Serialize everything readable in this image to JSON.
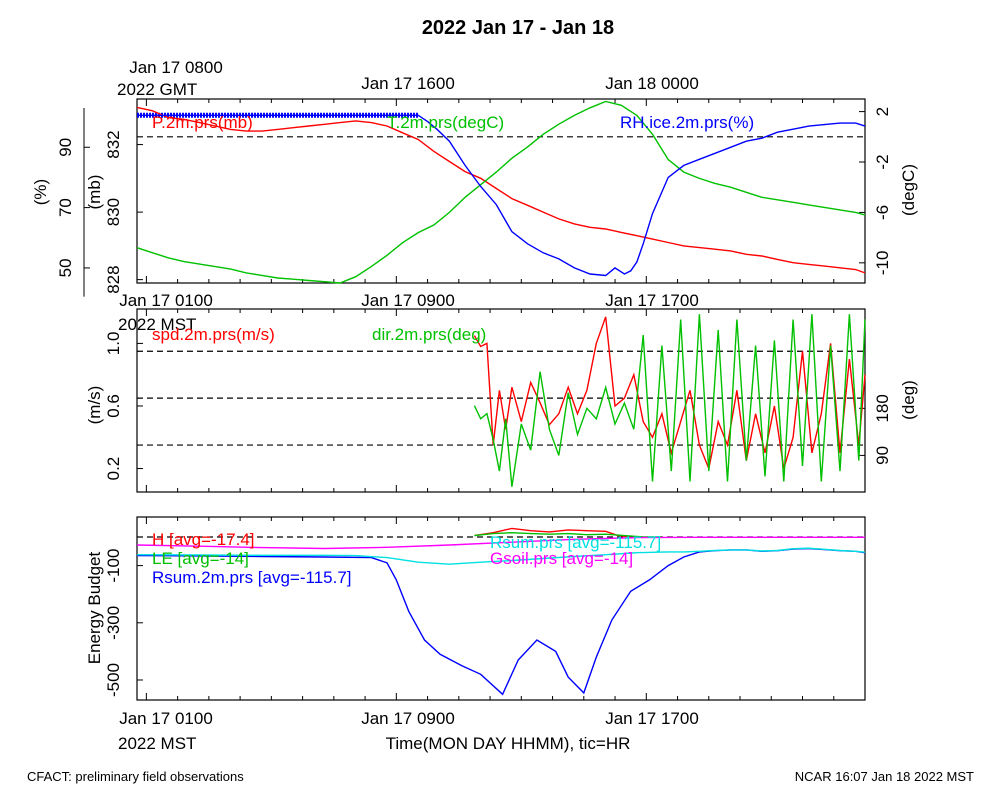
{
  "title": "2022 Jan 17 - Jan 18",
  "colors": {
    "red": "#ff0000",
    "green": "#00c000",
    "blue": "#0000ff",
    "cyan": "#00e0e0",
    "magenta": "#ff00ff",
    "black": "#000000"
  },
  "footer": {
    "left": "CFACT: preliminary field observations",
    "right": "NCAR 16:07 Jan 18 2022 MST"
  },
  "chart_data": [
    {
      "type": "line",
      "panel": "top",
      "top_time_labels": [
        "Jan 17 0800",
        "Jan 17 1600",
        "Jan 18 0000"
      ],
      "top_time_zone": "2022 GMT",
      "x_range_hours_mst": [
        0,
        23.3
      ],
      "axes": [
        {
          "side": "left-outer",
          "label": "(%)",
          "ticks": [
            "50",
            "70",
            "90"
          ],
          "range": [
            45,
            106
          ]
        },
        {
          "side": "left-inner",
          "label": "(mb)",
          "ticks": [
            "828",
            "830",
            "832"
          ],
          "range": [
            827.9,
            833.35
          ]
        },
        {
          "side": "right",
          "label": "(degC)",
          "ticks": [
            "-10",
            "-6",
            "-2",
            "2"
          ],
          "range": [
            -11.6,
            3
          ]
        }
      ],
      "reference_line": {
        "axis": "(degC)",
        "value": 0,
        "style": "dashed"
      },
      "series": [
        {
          "name": "P.2m.prs(mb)",
          "color": "red",
          "axis": "(mb)",
          "x": [
            0,
            0.5,
            1,
            1.5,
            2,
            2.5,
            3,
            3.5,
            4,
            4.5,
            5,
            5.5,
            6,
            6.5,
            7,
            7.5,
            8,
            8.5,
            9,
            9.5,
            10,
            10.5,
            11,
            11.5,
            12,
            12.5,
            13,
            13.5,
            14,
            14.5,
            15,
            15.5,
            16,
            16.5,
            17,
            17.5,
            18,
            18.5,
            19,
            19.5,
            20,
            20.5,
            21,
            21.5,
            22,
            22.5,
            23,
            23.3
          ],
          "y": [
            833.1,
            833.0,
            832.8,
            832.75,
            832.65,
            832.55,
            832.45,
            832.4,
            832.4,
            832.45,
            832.5,
            832.55,
            832.6,
            832.65,
            832.7,
            832.65,
            832.55,
            832.35,
            832.15,
            831.8,
            831.5,
            831.2,
            831.0,
            830.7,
            830.4,
            830.2,
            830.0,
            829.8,
            829.65,
            829.55,
            829.5,
            829.4,
            829.3,
            829.2,
            829.1,
            829.0,
            828.95,
            828.9,
            828.85,
            828.75,
            828.7,
            828.6,
            828.5,
            828.45,
            828.4,
            828.35,
            828.3,
            828.2
          ]
        },
        {
          "name": "T.2m.prs(degC)",
          "color": "green",
          "axis": "(degC)",
          "x": [
            0,
            0.5,
            1,
            1.5,
            2,
            2.5,
            3,
            3.5,
            4,
            4.5,
            5,
            5.5,
            6,
            6.5,
            7,
            7.5,
            8,
            8.5,
            9,
            9.5,
            10,
            10.5,
            11,
            11.5,
            12,
            12.5,
            13,
            13.5,
            14,
            14.5,
            15,
            15.5,
            16,
            16.5,
            17,
            17.5,
            18,
            18.5,
            19,
            19.5,
            20,
            20.5,
            21,
            21.5,
            22,
            22.5,
            23,
            23.3
          ],
          "y": [
            -8.8,
            -9.2,
            -9.6,
            -9.9,
            -10.1,
            -10.3,
            -10.5,
            -10.8,
            -11.0,
            -11.2,
            -11.3,
            -11.4,
            -11.5,
            -11.6,
            -11.1,
            -10.3,
            -9.4,
            -8.4,
            -7.6,
            -7.0,
            -6.0,
            -4.8,
            -3.8,
            -2.8,
            -1.7,
            -0.8,
            0.2,
            1.0,
            1.7,
            2.3,
            2.8,
            2.5,
            1.7,
            0.2,
            -1.8,
            -2.8,
            -3.3,
            -3.7,
            -4.0,
            -4.4,
            -4.8,
            -5.0,
            -5.2,
            -5.4,
            -5.6,
            -5.8,
            -6.0,
            -6.2
          ]
        },
        {
          "name": "RH.ice.2m.prs(%)",
          "color": "blue",
          "axis": "(%)",
          "x": [
            0,
            9.0,
            9.3,
            9.6,
            10,
            10.5,
            11,
            11.5,
            12,
            12.5,
            13,
            13.5,
            14,
            14.5,
            15,
            15.3,
            15.6,
            15.8,
            16,
            16.2,
            16.5,
            17,
            17.5,
            18,
            18.5,
            19,
            19.5,
            20,
            20.5,
            21,
            21.5,
            22,
            22.5,
            23,
            23.3
          ],
          "y": [
            100.6,
            100.6,
            98.5,
            96,
            92,
            84,
            77,
            71,
            62,
            58,
            55,
            53,
            50,
            48,
            47.5,
            50,
            48,
            49,
            52,
            58,
            68,
            80,
            84,
            86,
            88,
            90,
            92,
            93,
            95,
            96,
            97,
            97.5,
            98,
            98,
            97
          ]
        }
      ],
      "saturated_marker": {
        "color": "blue",
        "axis": "(%)",
        "x_range": [
          0,
          9.0
        ],
        "value": 100.6,
        "style": "dotted"
      }
    },
    {
      "type": "line",
      "panel": "middle",
      "x_range_hours_mst": [
        0,
        23.3
      ],
      "bottom_time_labels": [
        "Jan 17 0100",
        "Jan 17 0900",
        "Jan 17 1700"
      ],
      "bottom_time_zone": "2022 MST",
      "axes": [
        {
          "side": "left",
          "label": "(m/s)",
          "ticks": [
            "0.2",
            "0.6",
            "1.0"
          ],
          "range": [
            0.05,
            1.22
          ]
        },
        {
          "side": "right",
          "label": "(deg)",
          "ticks": [
            "90",
            "180"
          ],
          "range": [
            20,
            370
          ]
        }
      ],
      "reference_lines": [
        {
          "axis": "(m/s)",
          "values": [
            0.35,
            0.65,
            0.95
          ],
          "style": "dashed"
        }
      ],
      "series": [
        {
          "name": "spd.2m.prs(m/s)",
          "color": "red",
          "axis": "(m/s)",
          "x": [
            10.8,
            11.0,
            11.2,
            11.4,
            11.6,
            11.8,
            12,
            12.3,
            12.6,
            12.9,
            13.2,
            13.5,
            13.8,
            14.1,
            14.4,
            14.7,
            15.0,
            15.3,
            15.6,
            15.9,
            16.2,
            16.5,
            16.8,
            17.1,
            17.4,
            17.7,
            18.0,
            18.3,
            18.6,
            18.9,
            19.2,
            19.5,
            19.8,
            20.1,
            20.4,
            20.7,
            21.0,
            21.3,
            21.6,
            21.9,
            22.2,
            22.5,
            22.8,
            23.1,
            23.3
          ],
          "y": [
            1.05,
            0.98,
            1.0,
            0.35,
            0.7,
            0.45,
            0.72,
            0.5,
            0.75,
            0.62,
            0.48,
            0.55,
            0.72,
            0.55,
            0.7,
            1.0,
            1.17,
            0.6,
            0.65,
            0.8,
            0.5,
            0.4,
            0.55,
            0.3,
            0.5,
            0.7,
            0.35,
            0.2,
            0.5,
            0.35,
            0.7,
            0.25,
            0.55,
            0.3,
            0.6,
            0.2,
            0.4,
            0.95,
            0.3,
            0.55,
            1.0,
            0.3,
            0.9,
            0.35,
            0.8
          ]
        },
        {
          "name": "dir.2m.prs(deg)",
          "color": "green",
          "axis": "(deg)",
          "x": [
            10.8,
            11.0,
            11.2,
            11.4,
            11.6,
            11.8,
            12.0,
            12.3,
            12.6,
            12.9,
            13.2,
            13.5,
            13.8,
            14.1,
            14.4,
            14.7,
            15.0,
            15.3,
            15.6,
            15.9,
            16.2,
            16.5,
            16.8,
            17.1,
            17.4,
            17.7,
            18.0,
            18.3,
            18.6,
            18.9,
            19.2,
            19.5,
            19.8,
            20.1,
            20.4,
            20.7,
            21.0,
            21.3,
            21.6,
            21.9,
            22.2,
            22.5,
            22.8,
            23.1,
            23.3
          ],
          "y": [
            185,
            160,
            170,
            120,
            60,
            160,
            30,
            150,
            100,
            250,
            140,
            90,
            210,
            130,
            180,
            160,
            220,
            150,
            190,
            140,
            320,
            40,
            300,
            60,
            350,
            40,
            360,
            60,
            330,
            40,
            350,
            80,
            300,
            50,
            310,
            40,
            350,
            70,
            360,
            40,
            300,
            60,
            360,
            80,
            350
          ]
        }
      ]
    },
    {
      "type": "line",
      "panel": "bottom",
      "x_range_hours_mst": [
        0,
        23.3
      ],
      "bottom_time_labels": [
        "Jan 17 0100",
        "Jan 17 0900",
        "Jan 17 1700"
      ],
      "bottom_time_zone": "2022 MST",
      "xlabel": "Time(MON DAY HHMM), tic=HR",
      "axes": [
        {
          "side": "left",
          "label": "Energy Budget",
          "ticks": [
            "-500",
            "-300",
            "-100"
          ],
          "range": [
            -570,
            70
          ]
        }
      ],
      "reference_line": {
        "value": 0,
        "style": "dashed"
      },
      "series": [
        {
          "name": "H [avg=-17.4]",
          "color": "red",
          "x": [
            10.8,
            11.4,
            12.0,
            12.6,
            13.2,
            13.8,
            14.4,
            15.0,
            15.4,
            15.8
          ],
          "y": [
            5,
            15,
            30,
            22,
            18,
            25,
            22,
            20,
            5,
            0
          ]
        },
        {
          "name": "LE [avg=-14]",
          "color": "green",
          "x": [
            10.8,
            11.4,
            12.0,
            12.6,
            13.2,
            13.8,
            14.4,
            15.0,
            15.6,
            16.2,
            16.8
          ],
          "y": [
            5,
            12,
            15,
            12,
            10,
            12,
            8,
            10,
            5,
            0,
            0
          ]
        },
        {
          "name": "Rsum.2m.prs [avg=-115.7]",
          "color": "blue",
          "x": [
            0,
            2,
            4,
            6,
            7.5,
            8,
            8.3,
            8.7,
            9.2,
            9.7,
            10.4,
            11,
            11.7,
            12.2,
            12.8,
            13.4,
            13.8,
            14.3,
            14.7,
            15.2,
            15.8,
            16.4,
            17,
            17.5,
            18,
            18.5,
            19,
            19.5,
            20,
            20.5,
            21,
            21.5,
            22,
            22.5,
            23,
            23.3
          ],
          "y": [
            -65,
            -66,
            -68,
            -70,
            -72,
            -90,
            -150,
            -260,
            -360,
            -410,
            -450,
            -480,
            -550,
            -430,
            -360,
            -400,
            -490,
            -545,
            -420,
            -290,
            -190,
            -150,
            -100,
            -70,
            -52,
            -48,
            -45,
            -45,
            -50,
            -48,
            -42,
            -40,
            -44,
            -48,
            -50,
            -55
          ]
        },
        {
          "name": "Rsum.prs [avg=-115.7]",
          "color": "cyan",
          "x": [
            0,
            2,
            4,
            6,
            7,
            8,
            9,
            10,
            11,
            12,
            13,
            14,
            15,
            16,
            17,
            17.5,
            18,
            18.5,
            19,
            19.5,
            20,
            20.5,
            21,
            21.5,
            22,
            22.5,
            23,
            23.3
          ],
          "y": [
            -62,
            -63,
            -64,
            -64,
            -65,
            -72,
            -88,
            -95,
            -88,
            -82,
            -75,
            -68,
            -62,
            -55,
            -52,
            -52,
            -50,
            -47,
            -45,
            -45,
            -49,
            -47,
            -41,
            -39,
            -43,
            -47,
            -50,
            -53
          ]
        },
        {
          "name": "Gsoil.prs [avg=-14]",
          "color": "magenta",
          "x": [
            0,
            2,
            4,
            6,
            8,
            10,
            12,
            14,
            16,
            18,
            20,
            22,
            23.3
          ],
          "y": [
            -28,
            -32,
            -37,
            -40,
            -36,
            -28,
            -18,
            -8,
            -2,
            -1,
            -1,
            -1,
            -1
          ]
        }
      ]
    }
  ]
}
